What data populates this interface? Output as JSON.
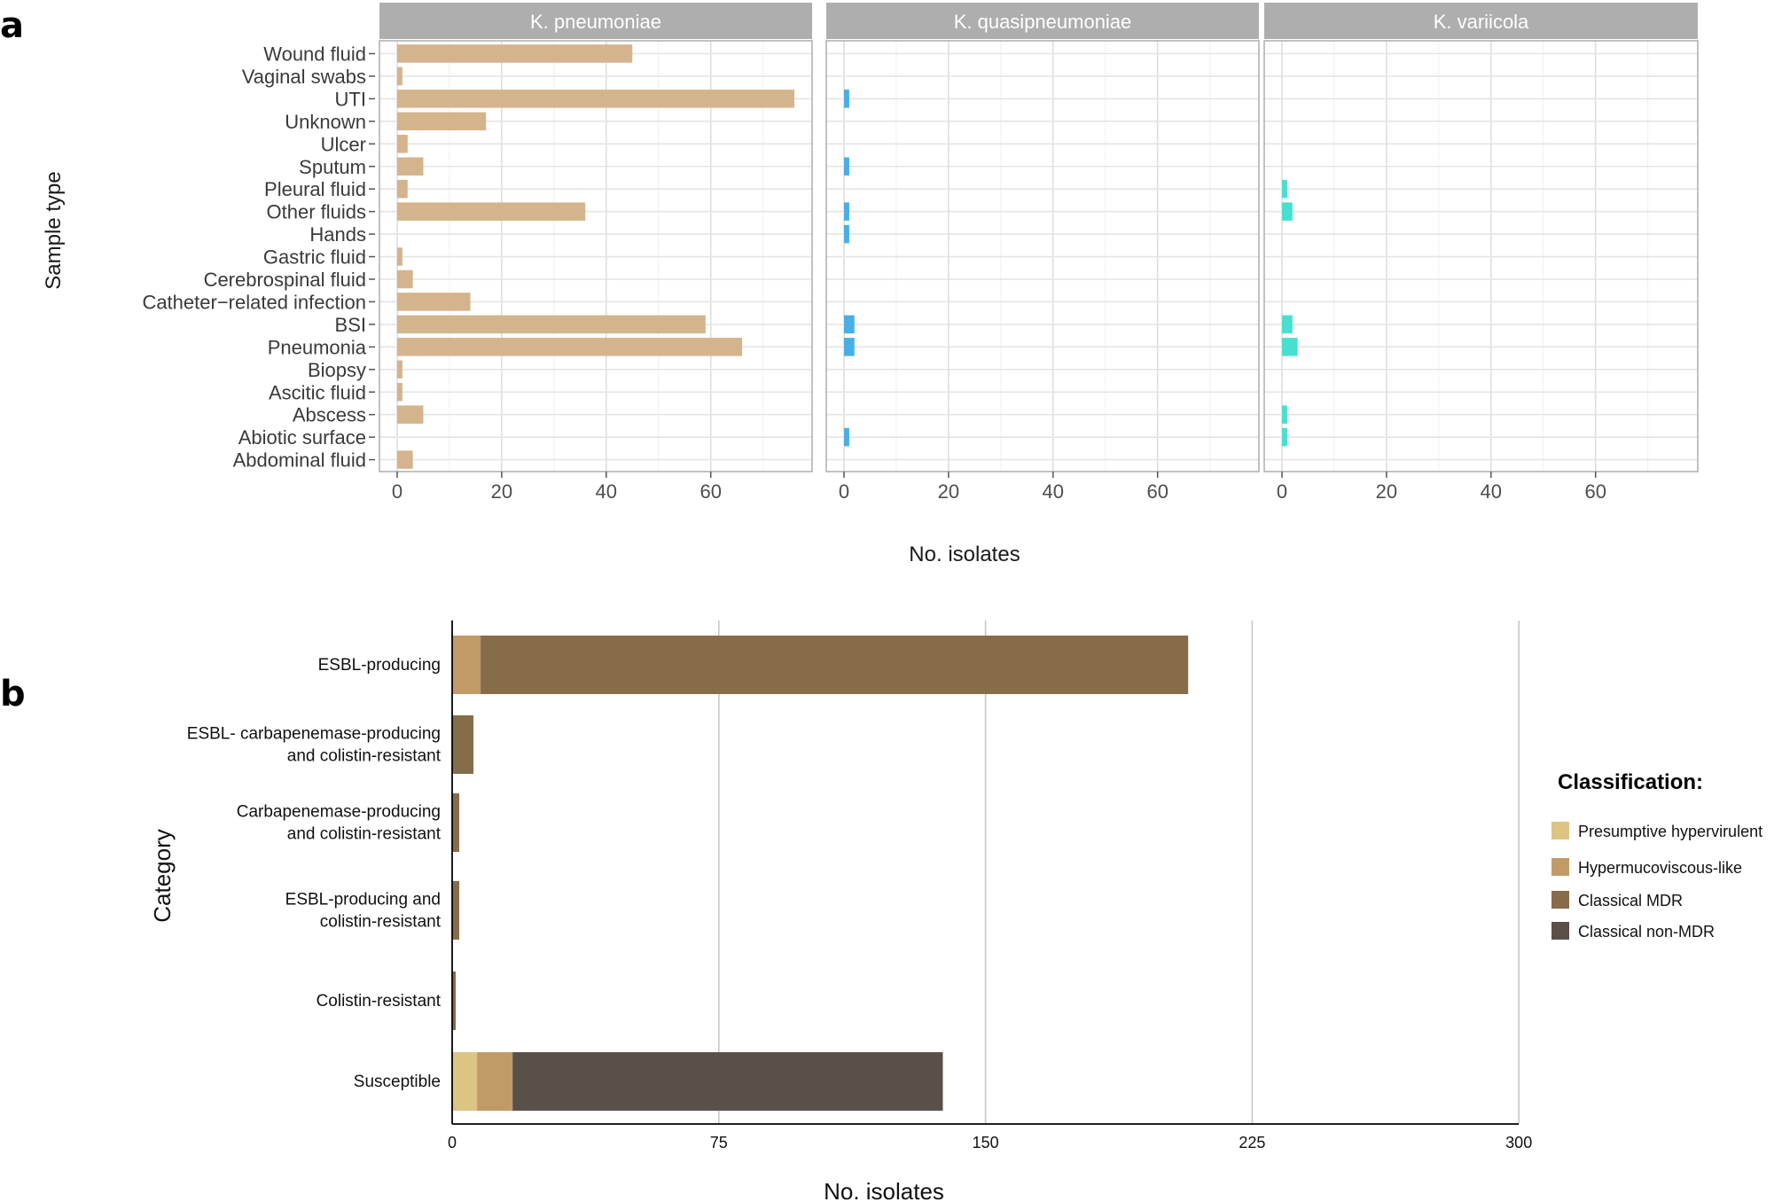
{
  "panel_a": {
    "letter": "a",
    "y_title": "Sample type",
    "x_title": "No. isolates",
    "facets": [
      "K. pneumoniae",
      "K. quasipneumoniae",
      "K. variicola"
    ],
    "x_ticks": [
      "0",
      "20",
      "40",
      "60"
    ]
  },
  "panel_b": {
    "letter": "b",
    "y_title": "Category",
    "x_title": "No. isolates",
    "x_ticks": [
      "0",
      "75",
      "150",
      "225",
      "300"
    ],
    "legend_title": "Classification:"
  },
  "chart_data": [
    {
      "type": "bar",
      "orientation": "horizontal",
      "title": "",
      "xlabel": "No. isolates",
      "ylabel": "Sample type",
      "xlim": [
        0,
        80
      ],
      "grid": true,
      "categories": [
        "Wound fluid",
        "Vaginal swabs",
        "UTI",
        "Unknown",
        "Ulcer",
        "Sputum",
        "Pleural fluid",
        "Other fluids",
        "Hands",
        "Gastric fluid",
        "Cerebrospinal fluid",
        "Catheter−related infection",
        "BSI",
        "Pneumonia",
        "Biopsy",
        "Ascitic fluid",
        "Abscess",
        "Abiotic surface",
        "Abdominal fluid"
      ],
      "series": [
        {
          "name": "K. pneumoniae",
          "color": "#d4b48c",
          "values": [
            45,
            1,
            76,
            17,
            2,
            5,
            2,
            36,
            0,
            1,
            3,
            14,
            59,
            66,
            1,
            1,
            5,
            0,
            3
          ]
        },
        {
          "name": "K. quasipneumoniae",
          "color": "#4aaee6",
          "values": [
            0,
            0,
            1,
            0,
            0,
            1,
            0,
            1,
            1,
            0,
            0,
            0,
            2,
            2,
            0,
            0,
            0,
            1,
            0
          ]
        },
        {
          "name": "K. variicola",
          "color": "#47e0d0",
          "values": [
            0,
            0,
            0,
            0,
            0,
            0,
            1,
            2,
            0,
            0,
            0,
            0,
            2,
            3,
            0,
            0,
            1,
            1,
            0
          ]
        }
      ]
    },
    {
      "type": "bar",
      "orientation": "horizontal",
      "stacked": true,
      "title": "",
      "xlabel": "No. isolates",
      "ylabel": "Category",
      "xlim": [
        0,
        300
      ],
      "grid": true,
      "legend_position": "right",
      "categories": [
        "ESBL-producing",
        "ESBL- carbapenemase-producing and colistin-resistant",
        "Carbapenemase-producing and colistin-resistant",
        "ESBL-producing and colistin-resistant",
        "Colistin-resistant",
        "Susceptible"
      ],
      "category_lines": [
        [
          "ESBL-producing"
        ],
        [
          "ESBL- carbapenemase-producing",
          "and colistin-resistant"
        ],
        [
          "Carbapenemase-producing",
          "and colistin-resistant"
        ],
        [
          "ESBL-producing and",
          "colistin-resistant"
        ],
        [
          "Colistin-resistant"
        ],
        [
          "Susceptible"
        ]
      ],
      "series": [
        {
          "name": "Presumptive hypervirulent",
          "color": "#dcc483",
          "values": [
            0,
            0,
            0,
            0,
            0,
            7
          ]
        },
        {
          "name": "Hypermucoviscous-like",
          "color": "#c29a68",
          "values": [
            8,
            0,
            0,
            0,
            0,
            10
          ]
        },
        {
          "name": "Classical MDR",
          "color": "#876c4a",
          "values": [
            199,
            6,
            2,
            2,
            1,
            0
          ]
        },
        {
          "name": "Classical non-MDR",
          "color": "#5a504a",
          "values": [
            0,
            0,
            0,
            0,
            0,
            121
          ]
        }
      ]
    }
  ]
}
